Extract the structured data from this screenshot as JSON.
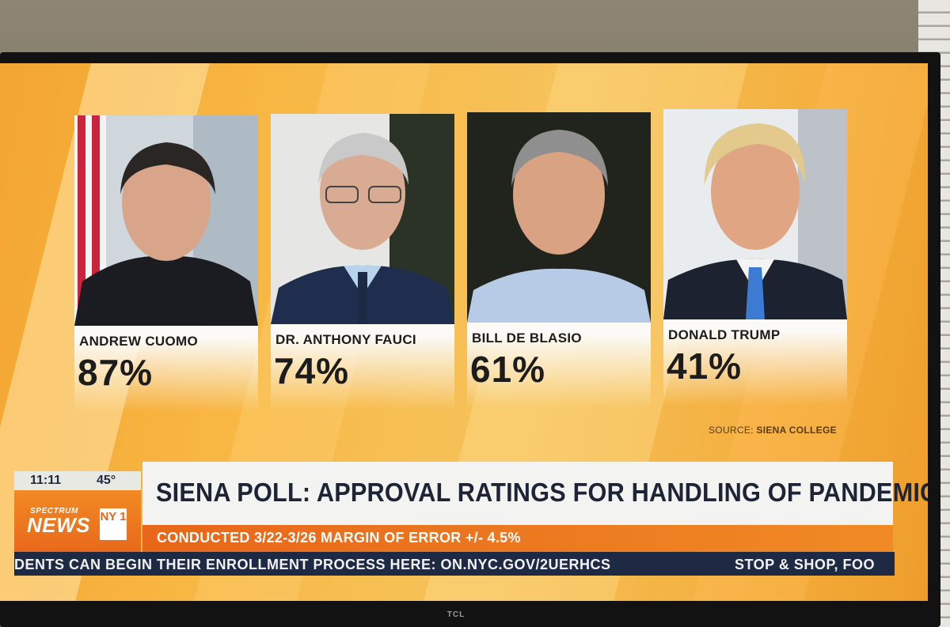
{
  "tv_brand": "TCL",
  "cards": [
    {
      "name": "ANDREW CUOMO",
      "percent": "87%"
    },
    {
      "name": "DR. ANTHONY FAUCI",
      "percent": "74%"
    },
    {
      "name": "BILL DE BLASIO",
      "percent": "61%"
    },
    {
      "name": "DONALD TRUMP",
      "percent": "41%"
    }
  ],
  "chart_data": {
    "type": "bar",
    "categories": [
      "ANDREW CUOMO",
      "DR. ANTHONY FAUCI",
      "BILL DE BLASIO",
      "DONALD TRUMP"
    ],
    "values": [
      87,
      74,
      61,
      41
    ]
  },
  "source": {
    "label": "SOURCE:",
    "value": "SIENA COLLEGE"
  },
  "lower_third": {
    "time": "11:11",
    "temperature": "45°",
    "logo_top": "SPECTRUM",
    "logo_main": "NEWS",
    "logo_badge": "NY 1",
    "headline": "SIENA POLL: APPROVAL RATINGS FOR HANDLING OF PANDEMIC",
    "subline": "CONDUCTED 3/22-3/26 MARGIN OF ERROR +/- 4.5%"
  },
  "ticker": {
    "text_1": "DENTS CAN BEGIN THEIR ENROLLMENT PROCESS HERE: ON.NYC.GOV/2UERHCS",
    "text_2": "STOP & SHOP, FOO"
  },
  "colors": {
    "background_orange": "#f6b545",
    "ticker_navy": "#1e2a44",
    "subline_orange": "#e8661a",
    "headline_text": "#1d2436"
  }
}
